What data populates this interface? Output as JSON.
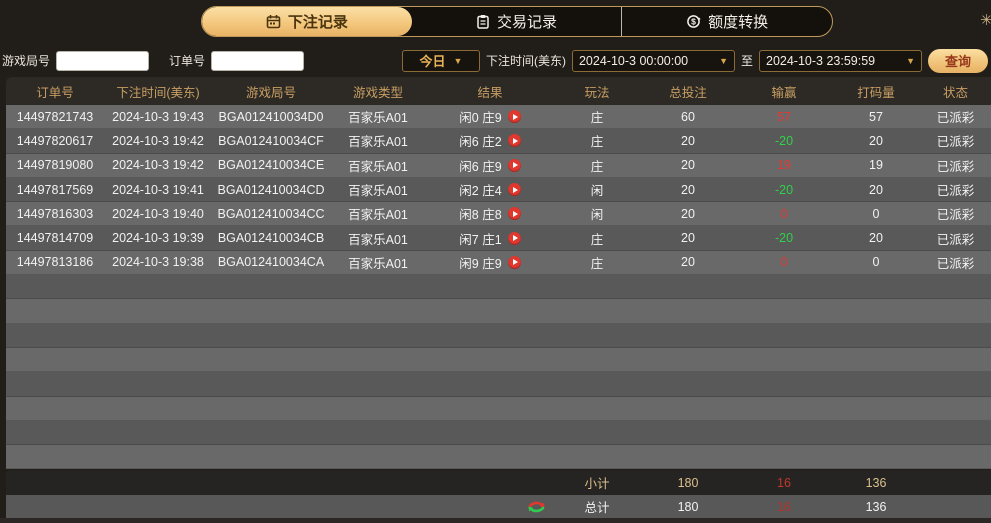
{
  "tabs": [
    {
      "label": "下注记录",
      "icon": "calendar-icon",
      "active": true
    },
    {
      "label": "交易记录",
      "icon": "clipboard-icon",
      "active": false
    },
    {
      "label": "额度转换",
      "icon": "coin-transfer-icon",
      "active": false
    }
  ],
  "filters": {
    "game_round_label": "游戏局号",
    "game_round_value": "",
    "order_no_label": "订单号",
    "order_no_value": "",
    "range_preset": "今日",
    "bet_time_label": "下注时间(美东)",
    "start_time": "2024-10-3 00:00:00",
    "to_label": "至",
    "end_time": "2024-10-3 23:59:59",
    "search_label": "查询"
  },
  "table": {
    "headers": [
      "订单号",
      "下注时间(美东)",
      "游戏局号",
      "游戏类型",
      "结果",
      "玩法",
      "总投注",
      "输赢",
      "打码量",
      "状态"
    ],
    "rows": [
      {
        "order_id": "14497821743",
        "bet_time": "2024-10-3 19:43",
        "round_id": "BGA012410034D0",
        "game_type": "百家乐A01",
        "result": "闲0 庄9",
        "play": "庄",
        "total_bet": "60",
        "win_loss": "57",
        "win_loss_color": "red",
        "turnover": "57",
        "status": "已派彩"
      },
      {
        "order_id": "14497820617",
        "bet_time": "2024-10-3 19:42",
        "round_id": "BGA012410034CF",
        "game_type": "百家乐A01",
        "result": "闲6 庄2",
        "play": "庄",
        "total_bet": "20",
        "win_loss": "-20",
        "win_loss_color": "green",
        "turnover": "20",
        "status": "已派彩"
      },
      {
        "order_id": "14497819080",
        "bet_time": "2024-10-3 19:42",
        "round_id": "BGA012410034CE",
        "game_type": "百家乐A01",
        "result": "闲6 庄9",
        "play": "庄",
        "total_bet": "20",
        "win_loss": "19",
        "win_loss_color": "red",
        "turnover": "19",
        "status": "已派彩"
      },
      {
        "order_id": "14497817569",
        "bet_time": "2024-10-3 19:41",
        "round_id": "BGA012410034CD",
        "game_type": "百家乐A01",
        "result": "闲2 庄4",
        "play": "闲",
        "total_bet": "20",
        "win_loss": "-20",
        "win_loss_color": "green",
        "turnover": "20",
        "status": "已派彩"
      },
      {
        "order_id": "14497816303",
        "bet_time": "2024-10-3 19:40",
        "round_id": "BGA012410034CC",
        "game_type": "百家乐A01",
        "result": "闲8 庄8",
        "play": "闲",
        "total_bet": "20",
        "win_loss": "0",
        "win_loss_color": "red",
        "turnover": "0",
        "status": "已派彩"
      },
      {
        "order_id": "14497814709",
        "bet_time": "2024-10-3 19:39",
        "round_id": "BGA012410034CB",
        "game_type": "百家乐A01",
        "result": "闲7 庄1",
        "play": "庄",
        "total_bet": "20",
        "win_loss": "-20",
        "win_loss_color": "green",
        "turnover": "20",
        "status": "已派彩"
      },
      {
        "order_id": "14497813186",
        "bet_time": "2024-10-3 19:38",
        "round_id": "BGA012410034CA",
        "game_type": "百家乐A01",
        "result": "闲9 庄9",
        "play": "庄",
        "total_bet": "20",
        "win_loss": "0",
        "win_loss_color": "red",
        "turnover": "0",
        "status": "已派彩"
      }
    ],
    "empty_row_count": 8,
    "subtotal": {
      "label": "小计",
      "total_bet": "180",
      "win_loss": "16",
      "turnover": "136"
    },
    "total": {
      "label": "总计",
      "total_bet": "180",
      "win_loss": "16",
      "turnover": "136"
    }
  },
  "colors": {
    "accent_gold": "#eab96b",
    "tab_border": "#c09a5c",
    "win_red": "#e03a33",
    "loss_green": "#2ed14b",
    "play_icon_red": "#e0372e",
    "header_text": "#c79e63",
    "row_light": "#696969",
    "row_dark": "#595959"
  }
}
